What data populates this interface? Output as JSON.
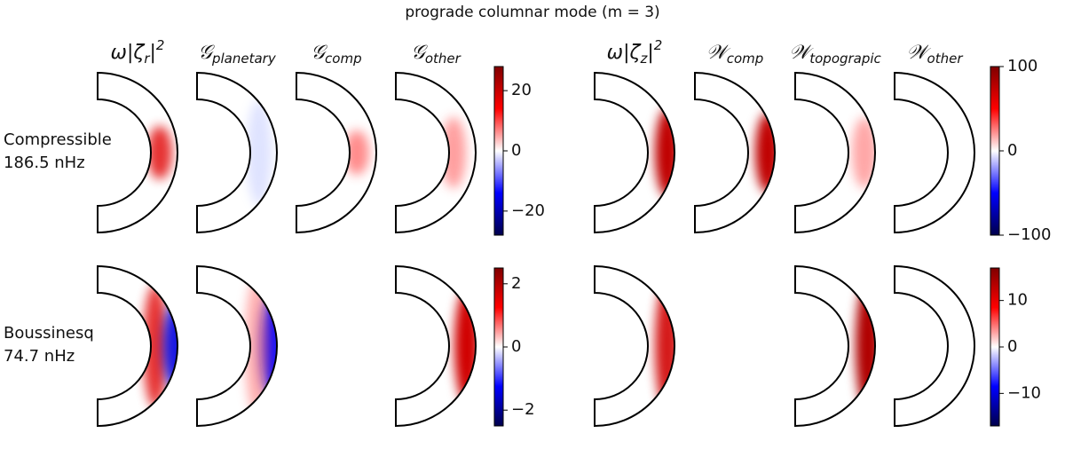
{
  "title": "prograde columnar mode (m = 3)",
  "groups": [
    {
      "headers": [
        {
          "text": "ω|ζ",
          "sub": "r",
          "post": "|",
          "sup": "2"
        },
        {
          "text": "𝒢",
          "sub": "planetary"
        },
        {
          "text": "𝒢",
          "sub": "comp"
        },
        {
          "text": "𝒢",
          "sub": "other"
        }
      ]
    },
    {
      "headers": [
        {
          "text": "ω|ζ",
          "sub": "z",
          "post": "|",
          "sup": "2"
        },
        {
          "text": "𝒲",
          "sub": "comp"
        },
        {
          "text": "𝒲",
          "sub": "topograpic"
        },
        {
          "text": "𝒲",
          "sub": "other"
        }
      ]
    }
  ],
  "rows": [
    {
      "label": "Compressible",
      "frequency": "186.5  nHz",
      "colorbars": [
        {
          "lim": [
            -28,
            28
          ],
          "ticks": [
            {
              "value": -20,
              "label": "−20"
            },
            0,
            20
          ]
        },
        {
          "lim": [
            -100,
            100
          ],
          "ticks": [
            {
              "value": -100,
              "label": "−100"
            },
            0,
            100
          ]
        }
      ]
    },
    {
      "label": "Boussinesq",
      "frequency": "74.7  nHz",
      "colorbars": [
        {
          "lim": [
            -2.5,
            2.5
          ],
          "ticks": [
            {
              "value": -2,
              "label": "−2"
            },
            0,
            2
          ]
        },
        {
          "lim": [
            -17,
            17
          ],
          "ticks": [
            {
              "value": -10,
              "label": "−10"
            },
            0,
            10
          ]
        }
      ]
    }
  ]
}
